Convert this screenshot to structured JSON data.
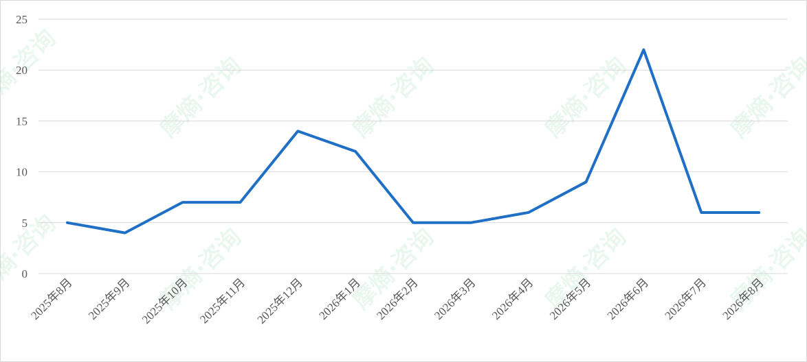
{
  "chart_data": {
    "type": "line",
    "categories": [
      "2025年8月",
      "2025年9月",
      "2025年10月",
      "2025年11月",
      "2025年12月",
      "2026年1月",
      "2026年2月",
      "2026年3月",
      "2026年4月",
      "2026年5月",
      "2026年6月",
      "2026年7月",
      "2026年8月"
    ],
    "series": [
      {
        "name": null,
        "color": "#1f6fc5",
        "values": [
          5,
          4,
          7,
          7,
          14,
          12,
          5,
          5,
          6,
          9,
          22,
          6,
          6
        ]
      }
    ],
    "ylim": [
      0,
      25
    ],
    "yticks": [
      0,
      5,
      10,
      15,
      20,
      25
    ],
    "grid": true,
    "watermark": "摩熵·咨询"
  }
}
